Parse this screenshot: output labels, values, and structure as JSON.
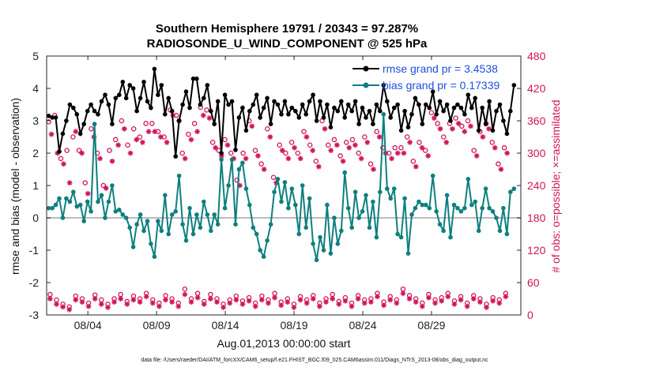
{
  "chart_data": {
    "type": "line",
    "title": "Southern Hemisphere 19791 / 20343 = 97.287%",
    "subtitle": "RADIOSONDE_U_WIND_COMPONENT @ 525 hPa",
    "xlabel": "Aug.01,2013 00:00:00 start",
    "ylabel_left": "rmse and bias (model - observation)",
    "ylabel_right": "# of obs: o=possible; ×=assimilated",
    "ylim_left": [
      -3,
      5
    ],
    "ylim_right": [
      0,
      480
    ],
    "xlim_days": [
      0,
      34.5
    ],
    "x_tick_labels": [
      "08/04",
      "08/09",
      "08/14",
      "08/19",
      "08/24",
      "08/29"
    ],
    "x_tick_days": [
      3,
      8,
      13,
      18,
      23,
      28
    ],
    "y_ticks_left": [
      -3,
      -2,
      -1,
      0,
      1,
      2,
      3,
      4,
      5
    ],
    "y_ticks_right": [
      0,
      60,
      120,
      180,
      240,
      300,
      360,
      420,
      480
    ],
    "legend": {
      "position": "top-right",
      "entries": [
        "rmse grand pr = 3.4538",
        "bias grand pr = 0.17339"
      ]
    },
    "colors": {
      "rmse": "#000000",
      "bias": "#0f7f7f",
      "obs": "#d0145a",
      "zero": "#bbbbbb"
    },
    "series": [
      {
        "name": "rmse",
        "values": [
          3.15,
          3.1,
          3.1,
          2.05,
          2.6,
          3.0,
          3.5,
          3.4,
          3.2,
          2.6,
          2.9,
          3.3,
          3.5,
          3.3,
          3.2,
          3.6,
          3.8,
          3.5,
          2.9,
          3.7,
          3.8,
          4.2,
          3.7,
          4.1,
          4.0,
          3.3,
          3.7,
          4.2,
          3.6,
          3.4,
          4.6,
          3.8,
          4.1,
          3.2,
          3.7,
          3.3,
          1.9,
          3.0,
          3.5,
          3.9,
          3.4,
          4.3,
          4.3,
          3.5,
          3.7,
          4.1,
          3.3,
          2.9,
          3.6,
          2.0,
          3.8,
          3.5,
          3.6,
          2.1,
          3.1,
          3.4,
          2.7,
          3.3,
          3.5,
          3.8,
          3.1,
          3.4,
          3.7,
          2.9,
          3.6,
          3.5,
          3.2,
          3.6,
          3.2,
          3.4,
          3.3,
          3.1,
          3.5,
          3.2,
          3.6,
          3.8,
          3.0,
          3.6,
          3.1,
          3.5,
          2.8,
          3.4,
          3.3,
          3.6,
          3.1,
          3.5,
          3.3,
          3.6,
          2.9,
          3.4,
          3.1,
          3.3,
          2.9,
          3.5,
          3.3,
          4.1,
          3.6,
          3.1,
          3.4,
          3.5,
          2.7,
          3.3,
          2.8,
          3.2,
          3.7,
          3.5,
          2.9,
          3.5,
          3.4,
          3.9,
          3.2,
          3.6,
          3.3,
          3.5,
          3.0,
          3.4,
          3.5,
          3.4,
          3.2,
          3.8,
          3.4,
          3.7,
          2.7,
          3.4,
          2.9,
          3.6,
          2.7,
          3.3,
          3.5,
          3.0,
          2.6,
          3.3,
          4.1
        ],
        "marker": "filled-circle"
      },
      {
        "name": "bias",
        "values": [
          0.3,
          0.3,
          0.4,
          0.6,
          0.0,
          0.6,
          0.5,
          0.8,
          0.35,
          0.4,
          -0.1,
          0.5,
          0.2,
          2.9,
          0.5,
          0.7,
          0.0,
          0.5,
          1.0,
          0.2,
          0.25,
          0.1,
          0.0,
          -0.3,
          -0.9,
          -0.2,
          0.1,
          -0.4,
          -0.1,
          -0.8,
          -1.2,
          -0.1,
          -0.4,
          0.7,
          -0.5,
          0.1,
          0.2,
          1.3,
          -0.2,
          -0.7,
          0.3,
          -0.5,
          0.1,
          -0.3,
          0.5,
          0.1,
          -0.4,
          0.1,
          -0.2,
          1.8,
          0.3,
          1.0,
          1.8,
          -0.2,
          1.5,
          1.7,
          0.9,
          0.4,
          -0.3,
          -0.5,
          -1.0,
          -1.2,
          -0.7,
          -0.2,
          0.8,
          1.2,
          0.5,
          1.1,
          0.3,
          0.9,
          0.4,
          -0.5,
          1.0,
          -0.3,
          0.6,
          -0.8,
          -1.3,
          -0.6,
          -1.0,
          0.4,
          -1.1,
          0.0,
          -0.8,
          -0.4,
          1.4,
          0.3,
          -0.3,
          0.8,
          0.0,
          0.2,
          0.7,
          -0.3,
          0.5,
          -0.6,
          0.8,
          3.2,
          0.9,
          0.6,
          0.9,
          -0.5,
          -0.6,
          0.6,
          -1.1,
          0.1,
          0.3,
          0.5,
          0.4,
          0.4,
          0.3,
          1.3,
          0.2,
          -0.2,
          -0.4,
          0.7,
          -0.6,
          0.4,
          0.3,
          0.2,
          0.3,
          1.2,
          0.4,
          0.5,
          -0.4,
          0.3,
          0.9,
          0.3,
          0.2,
          0.0,
          -0.4,
          0.3,
          -0.5,
          0.8,
          0.9
        ],
        "marker": "filled-circle"
      }
    ],
    "obs_possible": [
      358,
      370,
      290,
      305,
      330,
      305,
      245,
      345,
      300,
      240,
      305,
      325,
      360,
      315,
      345,
      330,
      355,
      355,
      340,
      330,
      380,
      370,
      300,
      335,
      355,
      385,
      380,
      320,
      305,
      325,
      300,
      250,
      300,
      360,
      305,
      280,
      345,
      255,
      315,
      300,
      320,
      300,
      340,
      315,
      285,
      360,
      315,
      325,
      295,
      320,
      325,
      300,
      330,
      280,
      340,
      310,
      300,
      310,
      310,
      330,
      285,
      320,
      305,
      375,
      355,
      330,
      355,
      365,
      350,
      360,
      305,
      340,
      355,
      320,
      280,
      310
    ],
    "obs_assimilated": [
      335,
      300,
      280,
      245,
      340,
      300,
      225,
      330,
      290,
      235,
      285,
      315,
      345,
      300,
      325,
      320,
      340,
      340,
      330,
      320,
      370,
      360,
      290,
      325,
      340,
      370,
      365,
      310,
      295,
      315,
      290,
      240,
      290,
      350,
      295,
      270,
      330,
      245,
      305,
      290,
      310,
      290,
      330,
      305,
      275,
      345,
      305,
      315,
      285,
      310,
      315,
      290,
      320,
      270,
      330,
      300,
      290,
      300,
      300,
      320,
      275,
      310,
      295,
      365,
      345,
      320,
      345,
      355,
      340,
      350,
      295,
      330,
      345,
      310,
      270,
      300
    ],
    "obs_low_possible": [
      38,
      28,
      20,
      15,
      35,
      30,
      22,
      37,
      28,
      20,
      30,
      38,
      25,
      35,
      30,
      40,
      28,
      22,
      36,
      30,
      22,
      48,
      30,
      40,
      25,
      38,
      30,
      20,
      28,
      35,
      26,
      32,
      22,
      35,
      28,
      40,
      24,
      30,
      20,
      34,
      28,
      36,
      22,
      30,
      38,
      25,
      32,
      22,
      36,
      28,
      30,
      40,
      24,
      34,
      28,
      48,
      36,
      30,
      22,
      38,
      28,
      32,
      40,
      26,
      34,
      22,
      36,
      30,
      20,
      32,
      28,
      40
    ],
    "obs_low_assimilated": [
      30,
      20,
      15,
      10,
      28,
      24,
      16,
      30,
      20,
      14,
      24,
      30,
      20,
      28,
      24,
      34,
      22,
      16,
      28,
      24,
      16,
      38,
      24,
      32,
      20,
      30,
      24,
      14,
      22,
      28,
      20,
      26,
      16,
      28,
      22,
      32,
      18,
      24,
      14,
      28,
      22,
      30,
      16,
      24,
      30,
      20,
      26,
      16,
      30,
      22,
      24,
      34,
      18,
      28,
      22,
      40,
      30,
      24,
      16,
      32,
      22,
      26,
      34,
      20,
      28,
      16,
      30,
      24,
      14,
      26,
      22,
      34
    ]
  },
  "footer": "data file: /Users/raeder/DAI/ATM_forcXX/CAM6_setup/f.e21.FHIST_BGC.f09_025.CAM6assim.011/Diags_NTrS_2013-08/obs_diag_output.nc"
}
